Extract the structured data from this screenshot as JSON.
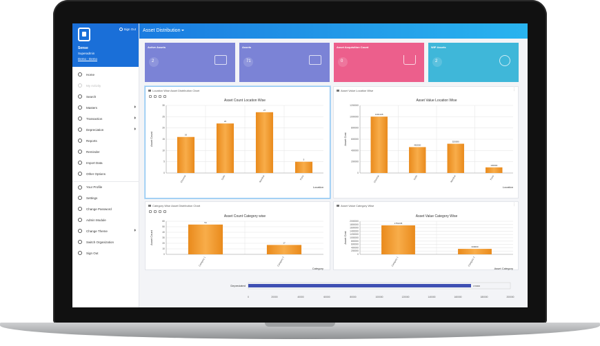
{
  "app": {
    "page_title": "Asset Distribution",
    "sign_out_short": "Sign Out"
  },
  "user": {
    "name": "Sense",
    "role": "Superadmin",
    "org": "Demo - Demo"
  },
  "menu": [
    {
      "label": "Home",
      "icon": "home-icon",
      "caret": false,
      "faded": false,
      "gap": false
    },
    {
      "label": "My Activity",
      "icon": "activity-icon",
      "caret": false,
      "faded": true,
      "gap": false
    },
    {
      "label": "Search",
      "icon": "search-icon",
      "caret": false,
      "faded": false,
      "gap": false
    },
    {
      "label": "Masters",
      "icon": "grid-icon",
      "caret": true,
      "faded": false,
      "gap": false
    },
    {
      "label": "Transaction",
      "icon": "swap-icon",
      "caret": true,
      "faded": false,
      "gap": false
    },
    {
      "label": "Depreciation",
      "icon": "trend-icon",
      "caret": true,
      "faded": false,
      "gap": false
    },
    {
      "label": "Reports",
      "icon": "report-icon",
      "caret": false,
      "faded": false,
      "gap": false
    },
    {
      "label": "Reminder",
      "icon": "bell-icon",
      "caret": false,
      "faded": false,
      "gap": false
    },
    {
      "label": "Import Data",
      "icon": "import-icon",
      "caret": false,
      "faded": false,
      "gap": false
    },
    {
      "label": "Other Options",
      "icon": "options-icon",
      "caret": false,
      "faded": false,
      "gap": false
    },
    {
      "label": "Your Profile",
      "icon": "user-icon",
      "caret": false,
      "faded": false,
      "gap": true
    },
    {
      "label": "Settings",
      "icon": "gear-icon",
      "caret": false,
      "faded": false,
      "gap": false
    },
    {
      "label": "Change Password",
      "icon": "key-icon",
      "caret": false,
      "faded": false,
      "gap": false
    },
    {
      "label": "Admin Module",
      "icon": "admin-icon",
      "caret": false,
      "faded": false,
      "gap": false
    },
    {
      "label": "Change Theme",
      "icon": "palette-icon",
      "caret": true,
      "faded": false,
      "gap": false
    },
    {
      "label": "Switch Organization",
      "icon": "switch-icon",
      "caret": false,
      "faded": false,
      "gap": false
    },
    {
      "label": "Sign Out",
      "icon": "power-icon",
      "caret": false,
      "faded": false,
      "gap": false
    }
  ],
  "cards": [
    {
      "label": "Active Assets",
      "value": "2",
      "color": "#7b83d6",
      "icon": "assets-icon"
    },
    {
      "label": "Assets",
      "value": "71",
      "color": "#7b83d6",
      "icon": "assets-icon"
    },
    {
      "label": "Asset Acquisition Count",
      "value": "0",
      "color": "#ec5f8c",
      "icon": "cart-icon"
    },
    {
      "label": "WIP Assets",
      "value": "2",
      "color": "#3fb7d9",
      "icon": "hand-icon"
    }
  ],
  "panels": {
    "p1_title": "Location Wise Asset Distribution Chart",
    "p2_title": "Asset Value Location Wise",
    "p3_title": "Category Wise Asset Distribution Chart",
    "p4_title": "Asset Value Category Wise"
  },
  "chart_data": [
    {
      "type": "bar",
      "title": "Asset Count Location Wise",
      "xlabel": "Location",
      "ylabel": "Asset Count",
      "categories": [
        "Chennai",
        "Delhi",
        "Mumbai",
        "Pune"
      ],
      "values": [
        16,
        22,
        27,
        5
      ],
      "ylim": [
        0,
        30
      ],
      "yticks": [
        0,
        5,
        10,
        15,
        20,
        25,
        30
      ],
      "color": "#f39a2e",
      "grid": true
    },
    {
      "type": "bar",
      "title": "Asset Value Location Wise",
      "xlabel": "Location",
      "ylabel": "Asset Cost",
      "categories": [
        "Chennai",
        "Delhi",
        "Mumbai",
        "Pune"
      ],
      "values": [
        1001245,
        460000,
        520000,
        100000
      ],
      "data_labels": [
        "1001245",
        "460000",
        "520000",
        "100000"
      ],
      "ylim": [
        0,
        1200000
      ],
      "yticks": [
        0,
        200000,
        400000,
        600000,
        800000,
        1000000,
        1200000
      ],
      "color": "#f39a2e",
      "grid": true
    },
    {
      "type": "bar",
      "title": "Asset Count Category wise",
      "xlabel": "Category",
      "ylabel": "Asset Count",
      "categories": [
        "Category 1",
        "Category 2"
      ],
      "values": [
        54,
        17
      ],
      "ylim": [
        0,
        60
      ],
      "yticks": [
        0,
        10,
        20,
        30,
        40,
        50,
        60
      ],
      "color": "#f39a2e",
      "grid": true
    },
    {
      "type": "bar",
      "title": "Asset Value Category Wise",
      "xlabel": "Asset Category",
      "ylabel": "Asset Cost",
      "categories": [
        "Category 1",
        "Category 2"
      ],
      "values": [
        1751245,
        330000
      ],
      "data_labels": [
        "1751245",
        "330000"
      ],
      "ylim": [
        0,
        2000000
      ],
      "yticks": [
        0,
        200000,
        400000,
        600000,
        800000,
        1000000,
        1200000,
        1400000,
        1600000,
        1800000,
        2000000
      ],
      "color": "#f39a2e",
      "grid": true
    },
    {
      "type": "bar",
      "orientation": "horizontal",
      "categories": [
        "Depreciated"
      ],
      "values": [
        170000
      ],
      "data_labels": [
        "170000"
      ],
      "xlim": [
        0,
        200000
      ],
      "xticks": [
        0,
        20000,
        40000,
        60000,
        80000,
        100000,
        120000,
        140000,
        160000,
        180000,
        200000
      ],
      "color": "#3e4fb2"
    }
  ]
}
